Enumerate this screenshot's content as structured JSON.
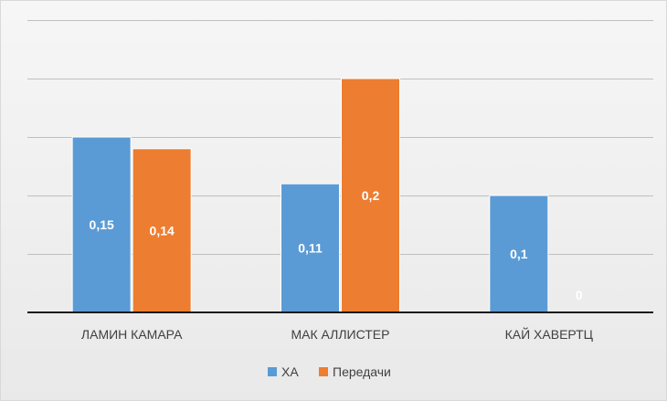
{
  "chart_data": {
    "type": "bar",
    "categories": [
      "ЛАМИН КАМАРА",
      "МАК АЛЛИСТЕР",
      "КАЙ ХАВЕРТЦ"
    ],
    "series": [
      {
        "name": "ХА",
        "values": [
          0.15,
          0.11,
          0.1
        ],
        "labels": [
          "0,15",
          "0,11",
          "0,1"
        ],
        "color": "#5b9bd5"
      },
      {
        "name": "Передачи",
        "values": [
          0.14,
          0.2,
          0
        ],
        "labels": [
          "0,14",
          "0,2",
          "0"
        ],
        "color": "#ed7d31"
      }
    ],
    "ylim": [
      0,
      0.25
    ],
    "gridlines": true,
    "legend": "bottom",
    "title": "",
    "xlabel": "",
    "ylabel": ""
  }
}
